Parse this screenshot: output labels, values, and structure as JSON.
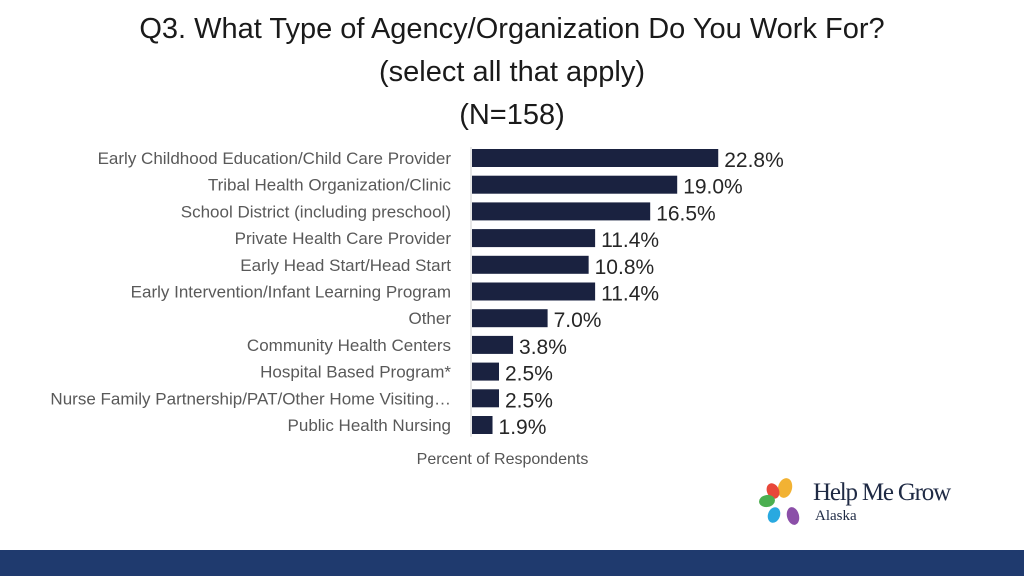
{
  "colors": {
    "bar": "#1a2240",
    "footer": "#1f3a6e",
    "text": "#595959"
  },
  "chart_data": {
    "type": "bar",
    "orientation": "horizontal",
    "title_lines": [
      "Q3. What Type of Agency/Organization Do You Work For?",
      "(select all that apply)",
      "(N=158)"
    ],
    "xlabel": "Percent of Respondents",
    "ylabel": "",
    "xlim": [
      0,
      25
    ],
    "grid": false,
    "categories": [
      "Early Childhood Education/Child Care Provider",
      "Tribal Health Organization/Clinic",
      "School District (including preschool)",
      "Private Health Care Provider",
      "Early Head Start/Head Start",
      "Early Intervention/Infant Learning Program",
      "Other",
      "Community Health Centers",
      "Hospital Based Program*",
      "Nurse Family Partnership/PAT/Other Home Visiting…",
      "Public Health Nursing"
    ],
    "values": [
      22.8,
      19.0,
      16.5,
      11.4,
      10.8,
      11.4,
      7.0,
      3.8,
      2.5,
      2.5,
      1.9
    ],
    "value_labels": [
      "22.8%",
      "19.0%",
      "16.5%",
      "11.4%",
      "10.8%",
      "11.4%",
      "7.0%",
      "3.8%",
      "2.5%",
      "2.5%",
      "1.9%"
    ]
  },
  "logo": {
    "name": "Help Me Grow",
    "subtitle": "Alaska",
    "petal_colors": [
      "#f2b233",
      "#e8473a",
      "#4caf50",
      "#29a9e0",
      "#8b4fa8"
    ]
  }
}
